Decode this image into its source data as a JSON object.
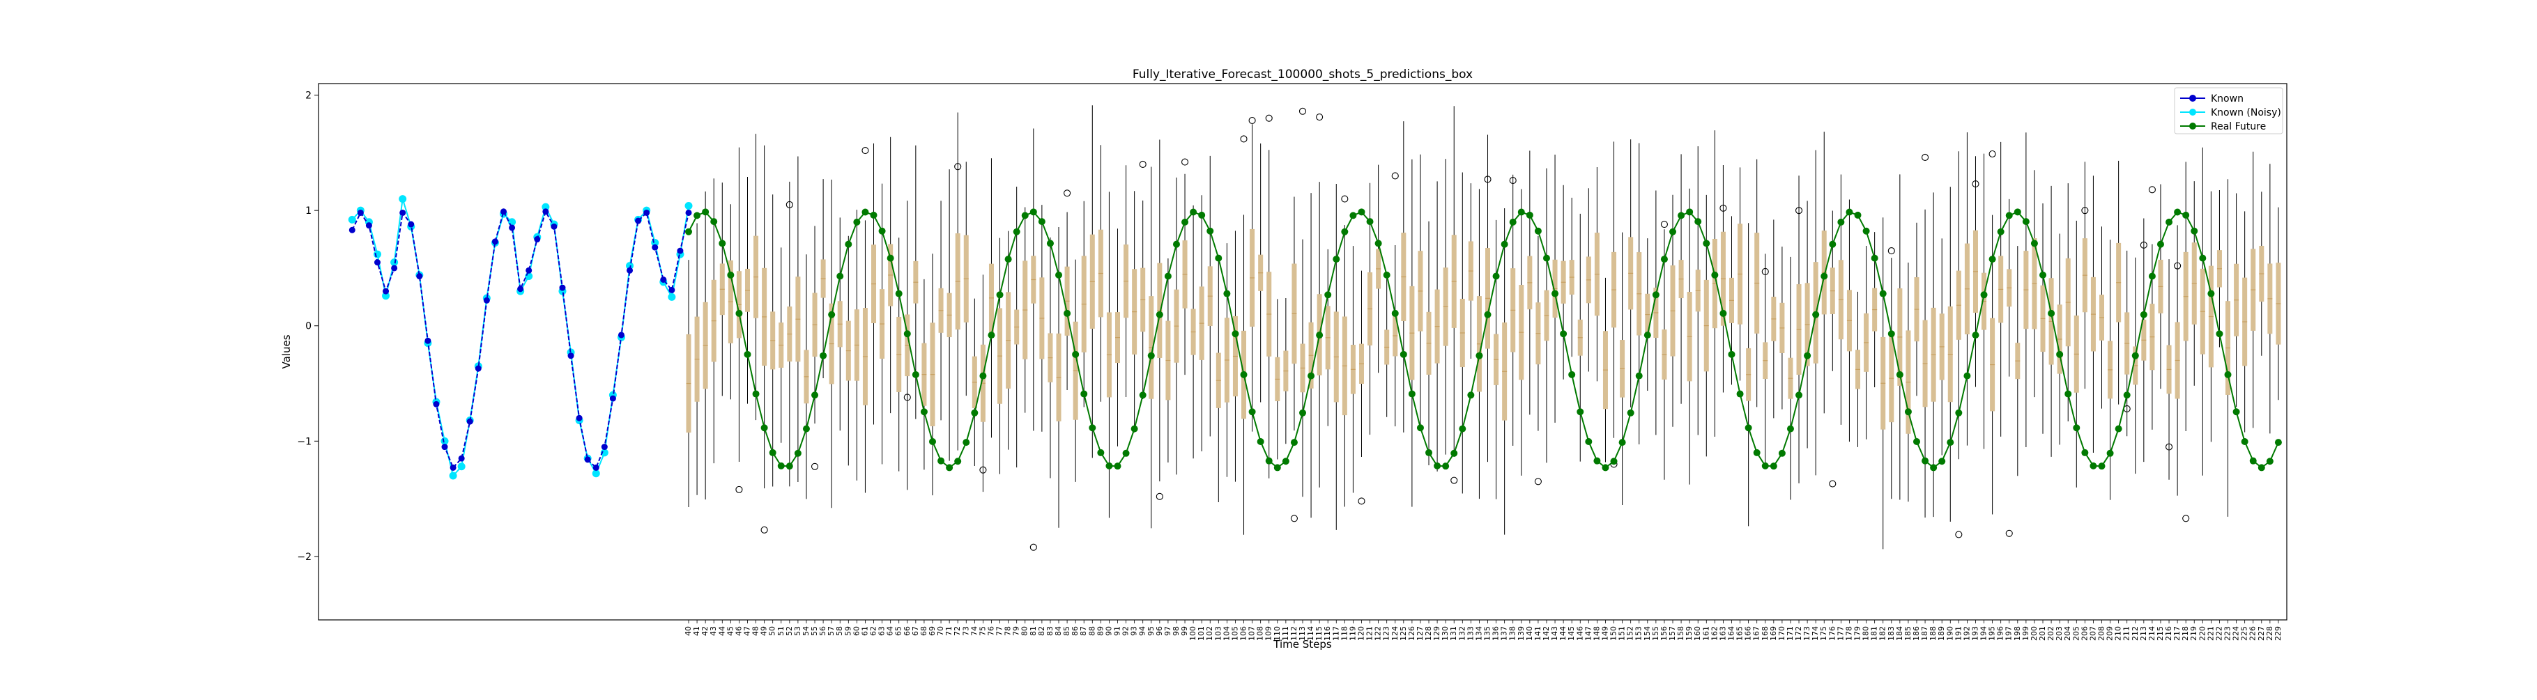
{
  "chart_data": {
    "type": "line",
    "title": "Fully_Iterative_Forecast_100000_shots_5_predictions_box",
    "xlabel": "Time Steps",
    "ylabel": "Values",
    "xlim": [
      -4,
      230
    ],
    "ylim": [
      -2.55,
      2.1
    ],
    "yticks": [
      -2,
      -1,
      0,
      1,
      2
    ],
    "ytick_labels": [
      "−2",
      "−1",
      "0",
      "1",
      "2"
    ],
    "legend_position": "top-right",
    "grid": false,
    "colors": {
      "known": "#0000cd",
      "known_noisy": "#00e5ff",
      "real_future": "#007a00",
      "box": "#d8bf94",
      "whisker": "#000000"
    },
    "x_tick_start": 40,
    "x_tick_end": 229,
    "series": [
      {
        "name": "Known",
        "x": [
          0,
          1,
          2,
          3,
          4,
          5,
          6,
          7,
          8,
          9,
          10,
          11,
          12,
          13,
          14,
          15,
          16,
          17,
          18,
          19,
          20,
          21,
          22,
          23,
          24,
          25,
          26,
          27,
          28,
          29,
          30,
          31,
          32,
          33,
          34,
          35,
          36,
          37,
          38,
          39,
          40
        ],
        "values": [
          0.83,
          0.98,
          0.87,
          0.55,
          0.3,
          0.5,
          0.98,
          0.88,
          0.43,
          -0.13,
          -0.68,
          -1.05,
          -1.23,
          -1.15,
          -0.83,
          -0.37,
          0.22,
          0.73,
          0.99,
          0.85,
          0.32,
          0.48,
          0.75,
          0.99,
          0.86,
          0.33,
          -0.26,
          -0.8,
          -1.16,
          -1.23,
          -1.05,
          -0.63,
          -0.08,
          0.48,
          0.91,
          0.98,
          0.68,
          0.4,
          0.31,
          0.65,
          0.98
        ]
      },
      {
        "name": "Known (Noisy)",
        "x": [
          0,
          1,
          2,
          3,
          4,
          5,
          6,
          7,
          8,
          9,
          10,
          11,
          12,
          13,
          14,
          15,
          16,
          17,
          18,
          19,
          20,
          21,
          22,
          23,
          24,
          25,
          26,
          27,
          28,
          29,
          30,
          31,
          32,
          33,
          34,
          35,
          36,
          37,
          38,
          39,
          40
        ],
        "values": [
          0.92,
          1.0,
          0.9,
          0.62,
          0.26,
          0.55,
          1.1,
          0.86,
          0.44,
          -0.15,
          -0.66,
          -1.0,
          -1.3,
          -1.22,
          -0.82,
          -0.35,
          0.24,
          0.72,
          0.97,
          0.9,
          0.3,
          0.43,
          0.77,
          1.03,
          0.88,
          0.3,
          -0.23,
          -0.82,
          -1.15,
          -1.28,
          -1.1,
          -0.6,
          -0.1,
          0.52,
          0.92,
          1.0,
          0.72,
          0.38,
          0.25,
          0.62,
          1.04
        ]
      },
      {
        "name": "Real Future",
        "x_start": 40,
        "x_end": 229,
        "period": 19.5,
        "amplitude": 1.11,
        "offset": -0.12,
        "phase_deg": 57.4
      }
    ],
    "boxes": {
      "x_start": 40,
      "x_end": 229,
      "median_range": [
        -0.5,
        0.5
      ],
      "typical_iqr_halfwidth": 0.3,
      "typical_whisker_halfwidth": 0.75
    },
    "outliers": [
      {
        "x": 46,
        "y": -1.42
      },
      {
        "x": 49,
        "y": -1.77
      },
      {
        "x": 52,
        "y": 1.05
      },
      {
        "x": 55,
        "y": -1.22
      },
      {
        "x": 61,
        "y": 1.52
      },
      {
        "x": 66,
        "y": -0.62
      },
      {
        "x": 72,
        "y": 1.38
      },
      {
        "x": 75,
        "y": -1.25
      },
      {
        "x": 81,
        "y": -1.92
      },
      {
        "x": 85,
        "y": 1.15
      },
      {
        "x": 94,
        "y": 1.4
      },
      {
        "x": 96,
        "y": -1.48
      },
      {
        "x": 99,
        "y": 1.42
      },
      {
        "x": 106,
        "y": 1.62
      },
      {
        "x": 107,
        "y": 1.78
      },
      {
        "x": 109,
        "y": 1.8
      },
      {
        "x": 112,
        "y": -1.67
      },
      {
        "x": 113,
        "y": 1.86
      },
      {
        "x": 115,
        "y": 1.81
      },
      {
        "x": 118,
        "y": 1.1
      },
      {
        "x": 120,
        "y": -1.52
      },
      {
        "x": 124,
        "y": 1.3
      },
      {
        "x": 131,
        "y": -1.34
      },
      {
        "x": 135,
        "y": 1.27
      },
      {
        "x": 138,
        "y": 1.26
      },
      {
        "x": 141,
        "y": -1.35
      },
      {
        "x": 150,
        "y": -1.2
      },
      {
        "x": 156,
        "y": 0.88
      },
      {
        "x": 163,
        "y": 1.02
      },
      {
        "x": 168,
        "y": 0.47
      },
      {
        "x": 172,
        "y": 1.0
      },
      {
        "x": 176,
        "y": -1.37
      },
      {
        "x": 183,
        "y": 0.65
      },
      {
        "x": 187,
        "y": 1.46
      },
      {
        "x": 191,
        "y": -1.81
      },
      {
        "x": 193,
        "y": 1.23
      },
      {
        "x": 195,
        "y": 1.49
      },
      {
        "x": 197,
        "y": -1.8
      },
      {
        "x": 206,
        "y": 1.0
      },
      {
        "x": 211,
        "y": -0.72
      },
      {
        "x": 213,
        "y": 0.7
      },
      {
        "x": 214,
        "y": 1.18
      },
      {
        "x": 216,
        "y": -1.05
      },
      {
        "x": 217,
        "y": 0.52
      },
      {
        "x": 218,
        "y": -1.67
      }
    ]
  }
}
